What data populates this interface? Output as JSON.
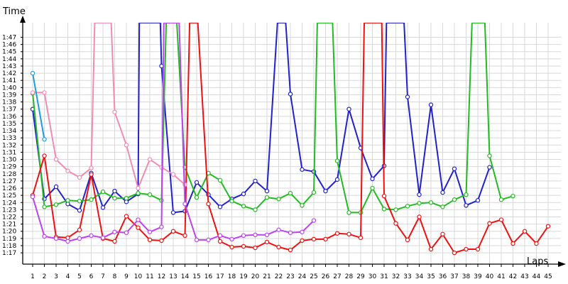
{
  "chart_data": {
    "type": "line",
    "ylabel": "Time",
    "xlabel": "Laps",
    "x_ticks": [
      1,
      2,
      3,
      4,
      5,
      6,
      7,
      8,
      9,
      10,
      11,
      12,
      13,
      14,
      15,
      16,
      17,
      18,
      19,
      20,
      21,
      22,
      23,
      24,
      25,
      26,
      27,
      28,
      29,
      30,
      31,
      32,
      33,
      34,
      35,
      36,
      37,
      38,
      39,
      40,
      41,
      42,
      43,
      44,
      45
    ],
    "y_tick_labels": [
      "1:17",
      "1:18",
      "1:19",
      "1:20",
      "1:21",
      "1:22",
      "1:23",
      "1:24",
      "1:25",
      "1:26",
      "1:27",
      "1:28",
      "1:29",
      "1:30",
      "1:31",
      "1:32",
      "1:33",
      "1:34",
      "1:35",
      "1:36",
      "1:37",
      "1:38",
      "1:39",
      "1:40",
      "1:41",
      "1:42",
      "1:43",
      "1:44",
      "1:45",
      "1:46",
      "1:47"
    ],
    "y_tick_seconds": [
      77,
      78,
      79,
      80,
      81,
      82,
      83,
      84,
      85,
      86,
      87,
      88,
      89,
      90,
      91,
      92,
      93,
      94,
      95,
      96,
      97,
      98,
      99,
      100,
      101,
      102,
      103,
      104,
      105,
      106,
      107
    ],
    "ylim_seconds": [
      76,
      109
    ],
    "xlim": [
      0.5,
      45
    ],
    "grid": true,
    "series": [
      {
        "color": "#2222cc",
        "points": [
          [
            1,
            97
          ],
          [
            2,
            84.5
          ],
          [
            3,
            86.2
          ],
          [
            4,
            83.8
          ],
          [
            5,
            82.9
          ],
          [
            6,
            88.1
          ],
          [
            7,
            83.3
          ],
          [
            8,
            85.6
          ],
          [
            9,
            84.1
          ],
          [
            10,
            85.2
          ],
          [
            10.1,
            999
          ],
          [
            11.9,
            999
          ],
          [
            12,
            103
          ],
          [
            13,
            82.6
          ],
          [
            14,
            82.8
          ],
          [
            15,
            86.8
          ],
          [
            16,
            85.1
          ],
          [
            17,
            83.4
          ],
          [
            18,
            84.5
          ],
          [
            19,
            85.2
          ],
          [
            20,
            87
          ],
          [
            21,
            85.6
          ],
          [
            21.9,
            999
          ],
          [
            22.6,
            999
          ],
          [
            23,
            99.1
          ],
          [
            24,
            88.6
          ],
          [
            25,
            88.3
          ],
          [
            26,
            85.6
          ],
          [
            27,
            87.2
          ],
          [
            28,
            97
          ],
          [
            29,
            91.6
          ],
          [
            30,
            87.3
          ],
          [
            31,
            89.1
          ],
          [
            31.2,
            999
          ],
          [
            32.7,
            999
          ],
          [
            33,
            98.7
          ],
          [
            34,
            85.1
          ],
          [
            35,
            97.6
          ],
          [
            36,
            85.4
          ],
          [
            37,
            88.7
          ],
          [
            38,
            83.6
          ],
          [
            39,
            84.3
          ],
          [
            40,
            88.9
          ]
        ]
      },
      {
        "color": "#22bb22",
        "points": [
          [
            1,
            99.2
          ],
          [
            2,
            83.4
          ],
          [
            3,
            83.7
          ],
          [
            4,
            84.3
          ],
          [
            5,
            84.2
          ],
          [
            6,
            84.4
          ],
          [
            7,
            85.5
          ],
          [
            8,
            84.6
          ],
          [
            9,
            84.6
          ],
          [
            10,
            85.3
          ],
          [
            11,
            85.1
          ],
          [
            12,
            84.3
          ],
          [
            12.4,
            999
          ],
          [
            13.3,
            999
          ],
          [
            14,
            88.9
          ],
          [
            15,
            84.7
          ],
          [
            16,
            88.1
          ],
          [
            17,
            87.1
          ],
          [
            18,
            84.2
          ],
          [
            19,
            83.5
          ],
          [
            20,
            83
          ],
          [
            21,
            84.7
          ],
          [
            22,
            84.5
          ],
          [
            23,
            85.3
          ],
          [
            24,
            83.6
          ],
          [
            25,
            85.4
          ],
          [
            25.3,
            999
          ],
          [
            26.6,
            999
          ],
          [
            27,
            89.8
          ],
          [
            28,
            82.6
          ],
          [
            29,
            82.6
          ],
          [
            30,
            86
          ],
          [
            31,
            83.1
          ],
          [
            32,
            83
          ],
          [
            33,
            83.5
          ],
          [
            34,
            83.9
          ],
          [
            35,
            84
          ],
          [
            36,
            83.4
          ],
          [
            37,
            84.4
          ],
          [
            38,
            85.1
          ],
          [
            38.5,
            999
          ],
          [
            39.6,
            999
          ],
          [
            40,
            90.5
          ],
          [
            41,
            84.4
          ],
          [
            42,
            84.9
          ]
        ]
      },
      {
        "color": "#ee1111",
        "points": [
          [
            1,
            85
          ],
          [
            2,
            90.5
          ],
          [
            3,
            79.2
          ],
          [
            4,
            79.1
          ],
          [
            5,
            80.2
          ],
          [
            6,
            87.9
          ],
          [
            7,
            79
          ],
          [
            8,
            78.6
          ],
          [
            9,
            82.1
          ],
          [
            10,
            80.5
          ],
          [
            11,
            78.8
          ],
          [
            12,
            78.7
          ],
          [
            13,
            80
          ],
          [
            14,
            79.4
          ],
          [
            14.4,
            999
          ],
          [
            15.1,
            999
          ],
          [
            16,
            83.8
          ],
          [
            17,
            78.6
          ],
          [
            18,
            77.8
          ],
          [
            19,
            77.9
          ],
          [
            20,
            77.7
          ],
          [
            21,
            78.5
          ],
          [
            22,
            77.8
          ],
          [
            23,
            77.4
          ],
          [
            24,
            78.7
          ],
          [
            25,
            78.9
          ],
          [
            26,
            78.9
          ],
          [
            27,
            79.7
          ],
          [
            28,
            79.6
          ],
          [
            29,
            79.1
          ],
          [
            29.3,
            999
          ],
          [
            30.1,
            999
          ],
          [
            30.4,
            999
          ],
          [
            30.8,
            999
          ],
          [
            31,
            84.9
          ],
          [
            32,
            81.1
          ],
          [
            33,
            78.8
          ],
          [
            34,
            82
          ],
          [
            35,
            77.5
          ],
          [
            36,
            79.6
          ],
          [
            37,
            77
          ],
          [
            38,
            77.5
          ],
          [
            39,
            77.5
          ],
          [
            40,
            81.1
          ],
          [
            41,
            81.6
          ],
          [
            42,
            78.3
          ],
          [
            43,
            80
          ],
          [
            44,
            78.3
          ],
          [
            45,
            80.7
          ]
        ]
      },
      {
        "color": "#f08cb4",
        "points": [
          [
            1,
            99.3
          ],
          [
            2,
            99.3
          ],
          [
            3,
            90
          ],
          [
            4,
            88.4
          ],
          [
            5,
            87.5
          ],
          [
            6,
            88.8
          ],
          [
            6.3,
            999
          ],
          [
            7.7,
            999
          ],
          [
            8,
            96.6
          ],
          [
            9,
            92
          ],
          [
            10,
            86
          ],
          [
            11,
            90
          ],
          [
            12,
            88.9
          ],
          [
            13,
            87.9
          ],
          [
            14,
            86.5
          ]
        ]
      },
      {
        "color": "#bb44ee",
        "points": [
          [
            1,
            84.8
          ],
          [
            2,
            79.3
          ],
          [
            3,
            79
          ],
          [
            4,
            78.6
          ],
          [
            5,
            79
          ],
          [
            6,
            79.4
          ],
          [
            7,
            79.1
          ],
          [
            8,
            79.9
          ],
          [
            9,
            79.8
          ],
          [
            10,
            81.6
          ],
          [
            11,
            79.9
          ],
          [
            12,
            80.6
          ],
          [
            12.2,
            999
          ],
          [
            13.5,
            999
          ],
          [
            14,
            83.8
          ],
          [
            15,
            78.8
          ],
          [
            16,
            78.8
          ],
          [
            17,
            79.4
          ],
          [
            18,
            78.9
          ],
          [
            19,
            79.4
          ],
          [
            20,
            79.5
          ],
          [
            21,
            79.5
          ],
          [
            22,
            80.2
          ],
          [
            23,
            79.8
          ],
          [
            24,
            79.9
          ],
          [
            25,
            81.5
          ]
        ]
      },
      {
        "color": "#1e9be6",
        "points": [
          [
            1,
            102
          ],
          [
            2,
            92.8
          ]
        ]
      }
    ]
  }
}
